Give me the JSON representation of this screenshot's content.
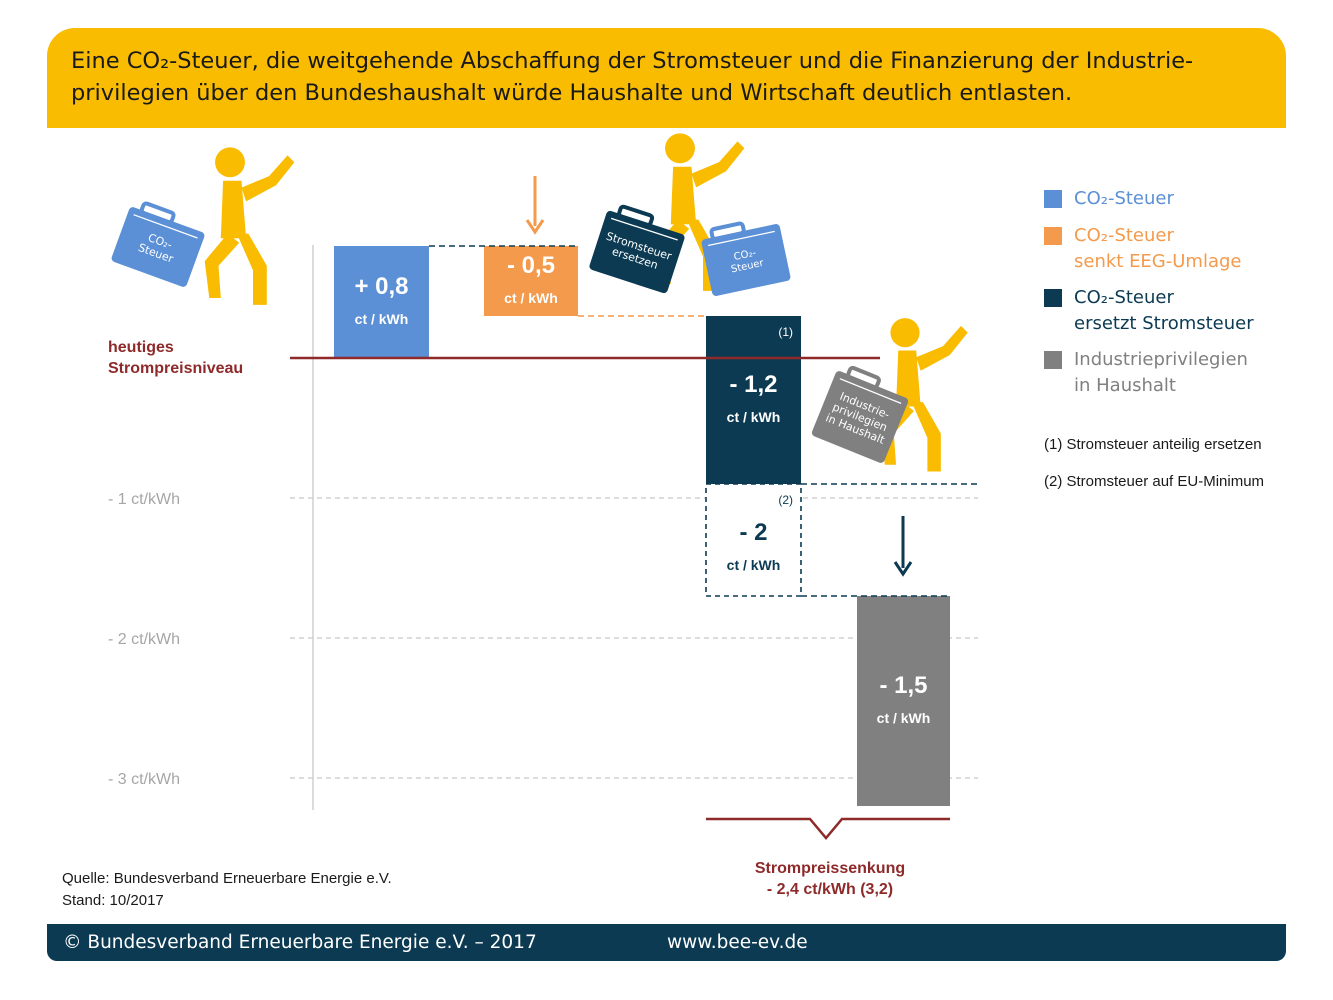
{
  "title": {
    "line1": "Eine CO₂-Steuer, die weitgehende Abschaffung der Stromsteuer und die Finanzierung der Industrie-",
    "line2": "privilegien über den Bundeshaushalt würde Haushalte und Wirtschaft deutlich entlasten."
  },
  "colors": {
    "co2": "#5b8fd6",
    "eeg": "#f39a4c",
    "stromsteuer": "#0b3a52",
    "industrie": "#808080",
    "level": "#8e2a2a",
    "title_bg": "#f9bc00",
    "figure": "#f9bc00"
  },
  "chart_data": {
    "type": "waterfall",
    "unit": "ct/kWh",
    "ylim": [
      -3.2,
      0.9
    ],
    "baseline_label": "heutiges Strompreisniveau",
    "y_ticks": [
      {
        "value": -1,
        "label": "- 1 ct/kWh"
      },
      {
        "value": -2,
        "label": "- 2 ct/kWh"
      },
      {
        "value": -3,
        "label": "- 3 ct/kWh"
      }
    ],
    "steps": [
      {
        "id": "co2",
        "from": 0,
        "to": 0.8,
        "value_label": "+ 0,8",
        "unit_label": "ct / kWh",
        "series": "co2"
      },
      {
        "id": "eeg",
        "from": 0.8,
        "to": 0.3,
        "value_label": "- 0,5",
        "unit_label": "ct / kWh",
        "series": "eeg"
      },
      {
        "id": "strom",
        "from": 0.3,
        "to": -0.9,
        "value_label": "- 1,2",
        "unit_label": "ct / kWh",
        "series": "stromsteuer",
        "note": "(1)"
      },
      {
        "id": "strom_alt",
        "from": -0.9,
        "to": -1.7,
        "value_label": "- 2",
        "unit_label": "ct / kWh",
        "series": "stromsteuer_dashed",
        "note": "(2)"
      },
      {
        "id": "industrie",
        "from": -1.7,
        "to": -3.2,
        "value_label": "- 1,5",
        "unit_label": "ct / kWh",
        "series": "industrie"
      }
    ],
    "total": {
      "label": "Strompreissenkung",
      "value_label": "- 2,4 ct/kWh (3,2)"
    },
    "suitcases": {
      "co2": [
        "CO₂-",
        "Steuer"
      ],
      "strom": [
        "Stromsteuer",
        "ersetzen"
      ],
      "co2_small": [
        "CO₂-",
        "Steuer"
      ],
      "industrie": [
        "Industrie-",
        "privilegien",
        "in Haushalt"
      ]
    },
    "legend": [
      {
        "series": "co2",
        "lines": [
          "CO₂-Steuer"
        ]
      },
      {
        "series": "eeg",
        "lines": [
          "CO₂-Steuer",
          "senkt EEG-Umlage"
        ]
      },
      {
        "series": "stromsteuer",
        "lines": [
          "CO₂-Steuer",
          "ersetzt Stromsteuer"
        ]
      },
      {
        "series": "industrie",
        "lines": [
          "Industrieprivilegien",
          "in Haushalt"
        ]
      }
    ],
    "notes": [
      "(1) Stromsteuer anteilig ersetzen",
      "(2) Stromsteuer auf EU-Minimum"
    ]
  },
  "source": {
    "line1": "Quelle: Bundesverband Erneuerbare Energie e.V.",
    "line2": "Stand: 10/2017"
  },
  "footer": {
    "copyright": "© Bundesverband Erneuerbare Energie e.V. – 2017",
    "url": "www.bee-ev.de"
  }
}
